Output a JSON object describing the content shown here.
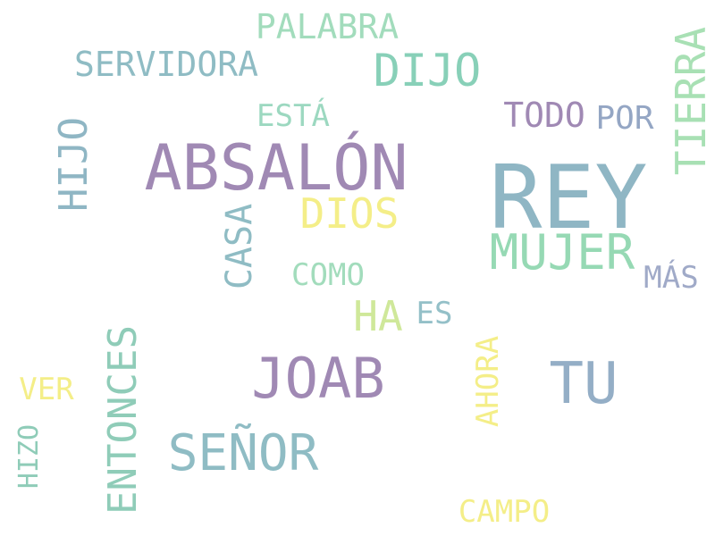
{
  "words": {
    "rey": {
      "text": "REY",
      "color": "#8fb6c4"
    },
    "absalon": {
      "text": "ABSALÓN",
      "color": "#a089b4"
    },
    "joab": {
      "text": "JOAB",
      "color": "#a089b4"
    },
    "tu": {
      "text": "TU",
      "color": "#94aec6"
    },
    "mujer": {
      "text": "MUJER",
      "color": "#96d9b4"
    },
    "senor": {
      "text": "SEÑOR",
      "color": "#8fbcc4"
    },
    "dijo": {
      "text": "DIJO",
      "color": "#88d0b8"
    },
    "dios": {
      "text": "DIOS",
      "color": "#f4ee88"
    },
    "ha": {
      "text": "HA",
      "color": "#cfe89a"
    },
    "palabra": {
      "text": "PALABRA",
      "color": "#a2dcbc"
    },
    "servidora": {
      "text": "SERVIDORA",
      "color": "#8fbcc4"
    },
    "todo": {
      "text": "TODO",
      "color": "#a089b4"
    },
    "por": {
      "text": "POR",
      "color": "#94a6c4"
    },
    "esta": {
      "text": "ESTÁ",
      "color": "#9cd8c0"
    },
    "como": {
      "text": "COMO",
      "color": "#a2dcbc"
    },
    "es": {
      "text": "ES",
      "color": "#94c0c8"
    },
    "mas": {
      "text": "MÁS",
      "color": "#a0aac8"
    },
    "ver": {
      "text": "VER",
      "color": "#f4ee88"
    },
    "campo": {
      "text": "CAMPO",
      "color": "#f4ee88"
    },
    "tierra": {
      "text": "TIERRA",
      "color": "#a8e0b4"
    },
    "hijo": {
      "text": "HIJO",
      "color": "#8fb6c4"
    },
    "casa": {
      "text": "CASA",
      "color": "#8fbcc4"
    },
    "entonces": {
      "text": "ENTONCES",
      "color": "#8fccb8"
    },
    "ahora": {
      "text": "AHORA",
      "color": "#f4ee88"
    },
    "hizo": {
      "text": "HIZO",
      "color": "#8fccb8"
    }
  }
}
